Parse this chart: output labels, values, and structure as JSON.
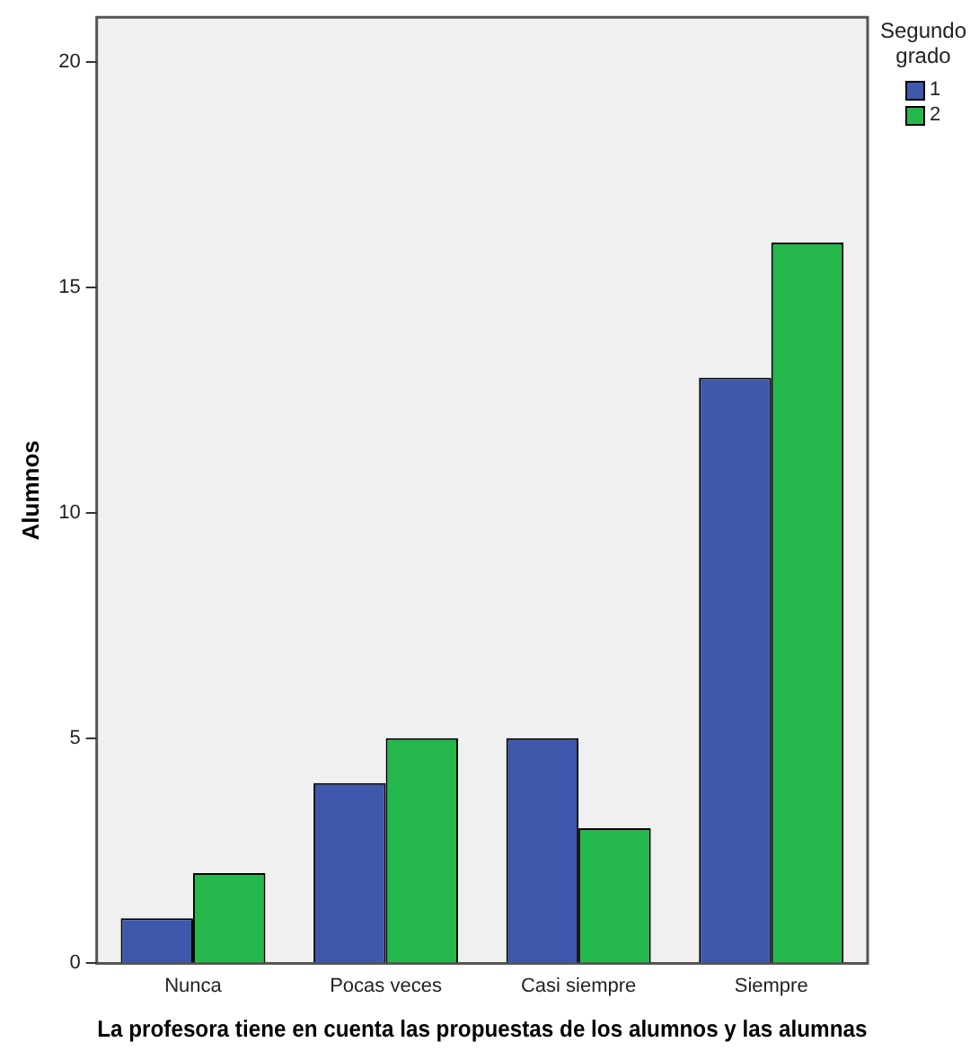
{
  "chart_data": {
    "type": "bar",
    "xlabel": "La profesora tiene en cuenta las propuestas de los alumnos y las alumnas",
    "ylabel": "Alumnos",
    "legend_title": "Segundo grado",
    "categories": [
      "Nunca",
      "Pocas veces",
      "Casi siempre",
      "Siempre"
    ],
    "series": [
      {
        "name": "1",
        "color": "#3e58ac",
        "values": [
          1,
          4,
          5,
          13
        ]
      },
      {
        "name": "2",
        "color": "#25b84c",
        "values": [
          2,
          5,
          3,
          16
        ]
      }
    ],
    "ylim": [
      0,
      21
    ],
    "yticks": [
      0,
      5,
      10,
      15,
      20
    ],
    "grid": false,
    "legend": "right"
  }
}
